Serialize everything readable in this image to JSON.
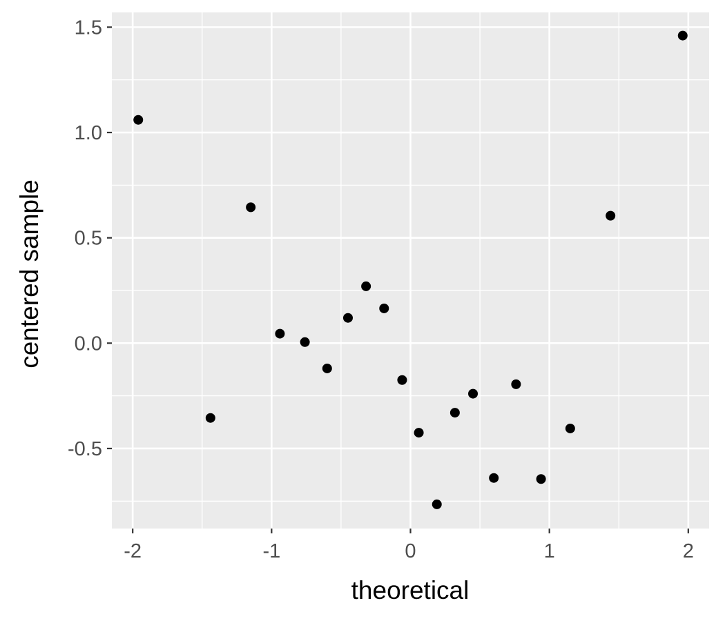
{
  "chart_data": {
    "type": "scatter",
    "title": "",
    "xlabel": "theoretical",
    "ylabel": "centered sample",
    "xlim": [
      -2.15,
      2.15
    ],
    "ylim": [
      -0.88,
      1.57
    ],
    "x_ticks": [
      -2,
      -1,
      0,
      1,
      2
    ],
    "x_tick_labels": [
      "-2",
      "-1",
      "0",
      "1",
      "2"
    ],
    "y_ticks": [
      -0.5,
      0.0,
      0.5,
      1.0,
      1.5
    ],
    "y_tick_labels": [
      "-0.5",
      "0.0",
      "0.5",
      "1.0",
      "1.5"
    ],
    "grid": true,
    "legend": "none",
    "colors": {
      "panel": "#ebebeb",
      "grid": "#ffffff",
      "point": "#000000",
      "tick_text": "#4d4d4d"
    },
    "points": [
      {
        "x": -1.96,
        "y": 1.06
      },
      {
        "x": -1.44,
        "y": -0.355
      },
      {
        "x": -1.15,
        "y": 0.645
      },
      {
        "x": -0.94,
        "y": 0.045
      },
      {
        "x": -0.76,
        "y": 0.005
      },
      {
        "x": -0.6,
        "y": -0.12
      },
      {
        "x": -0.45,
        "y": 0.12
      },
      {
        "x": -0.32,
        "y": 0.27
      },
      {
        "x": -0.19,
        "y": 0.165
      },
      {
        "x": -0.06,
        "y": -0.175
      },
      {
        "x": 0.06,
        "y": -0.425
      },
      {
        "x": 0.19,
        "y": -0.765
      },
      {
        "x": 0.32,
        "y": -0.33
      },
      {
        "x": 0.45,
        "y": -0.24
      },
      {
        "x": 0.6,
        "y": -0.64
      },
      {
        "x": 0.76,
        "y": -0.195
      },
      {
        "x": 0.94,
        "y": -0.645
      },
      {
        "x": 1.15,
        "y": -0.405
      },
      {
        "x": 1.44,
        "y": 0.605
      },
      {
        "x": 1.96,
        "y": 1.46
      }
    ]
  }
}
